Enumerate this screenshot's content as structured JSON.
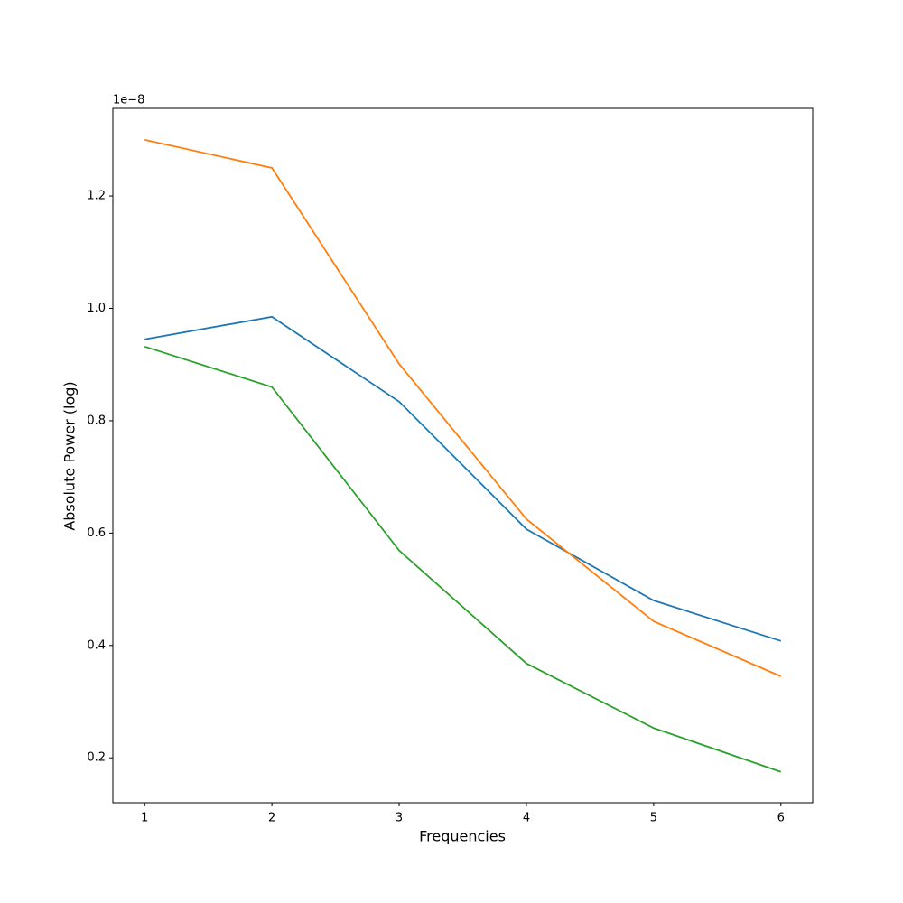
{
  "chart_data": {
    "type": "line",
    "x_label": "Frequencies",
    "y_label": "Absolute Power (log)",
    "y_offset_text": "1e−8",
    "x": [
      1,
      2,
      3,
      4,
      5,
      6
    ],
    "series": [
      {
        "color": "#1f77b4",
        "values": [
          0.945,
          0.985,
          0.834,
          0.607,
          0.48,
          0.408
        ]
      },
      {
        "color": "#ff7f0e",
        "values": [
          1.3,
          1.25,
          0.901,
          0.625,
          0.443,
          0.345
        ]
      },
      {
        "color": "#2ca02c",
        "values": [
          0.932,
          0.86,
          0.569,
          0.368,
          0.253,
          0.175
        ]
      }
    ],
    "xlim": [
      0.75,
      6.25
    ],
    "xticks": [
      1,
      2,
      3,
      4,
      5,
      6
    ],
    "ylim": [
      0.12,
      1.356
    ],
    "yticks": [
      0.2,
      0.4,
      0.6,
      0.8,
      1.0,
      1.2
    ]
  }
}
